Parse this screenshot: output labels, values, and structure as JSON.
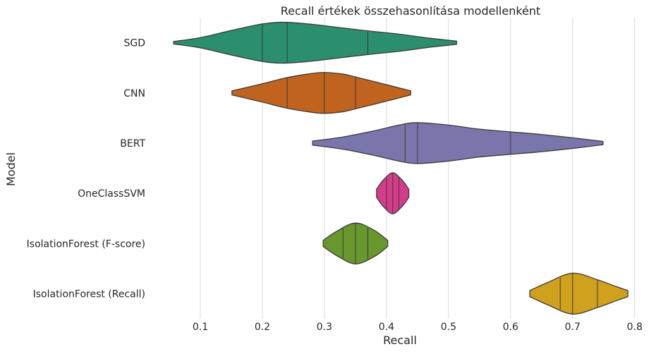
{
  "chart_data": {
    "type": "violin",
    "title": "Recall értékek összehasonlítása modellenként",
    "xlabel": "Recall",
    "ylabel": "Model",
    "xlim": [
      0.025,
      0.823
    ],
    "xticks": [
      0.1,
      0.2,
      0.3,
      0.4,
      0.5,
      0.6,
      0.7,
      0.8
    ],
    "xtick_labels": [
      "0.1",
      "0.2",
      "0.3",
      "0.4",
      "0.5",
      "0.6",
      "0.7",
      "0.8"
    ],
    "grid": "vertical",
    "series": [
      {
        "name": "SGD",
        "color": "#2a8e6f",
        "min": 0.057,
        "max": 0.513,
        "quartiles": [
          0.2,
          0.24,
          0.37
        ],
        "density": [
          [
            0.057,
            0.06
          ],
          [
            0.1,
            0.25
          ],
          [
            0.15,
            0.6
          ],
          [
            0.2,
            0.92
          ],
          [
            0.235,
            1.0
          ],
          [
            0.28,
            0.9
          ],
          [
            0.33,
            0.72
          ],
          [
            0.37,
            0.58
          ],
          [
            0.42,
            0.42
          ],
          [
            0.47,
            0.22
          ],
          [
            0.513,
            0.08
          ]
        ]
      },
      {
        "name": "CNN",
        "color": "#c0631e",
        "min": 0.151,
        "max": 0.439,
        "quartiles": [
          0.24,
          0.3,
          0.35
        ],
        "density": [
          [
            0.151,
            0.1
          ],
          [
            0.2,
            0.45
          ],
          [
            0.24,
            0.75
          ],
          [
            0.28,
            0.95
          ],
          [
            0.3,
            1.0
          ],
          [
            0.33,
            0.92
          ],
          [
            0.35,
            0.78
          ],
          [
            0.39,
            0.48
          ],
          [
            0.439,
            0.1
          ]
        ]
      },
      {
        "name": "BERT",
        "color": "#7a76ab",
        "min": 0.281,
        "max": 0.749,
        "quartiles": [
          0.43,
          0.45,
          0.6
        ],
        "density": [
          [
            0.281,
            0.1
          ],
          [
            0.33,
            0.3
          ],
          [
            0.38,
            0.6
          ],
          [
            0.42,
            0.88
          ],
          [
            0.45,
            1.0
          ],
          [
            0.5,
            0.88
          ],
          [
            0.55,
            0.68
          ],
          [
            0.6,
            0.55
          ],
          [
            0.65,
            0.42
          ],
          [
            0.7,
            0.26
          ],
          [
            0.749,
            0.08
          ]
        ]
      },
      {
        "name": "OneClassSVM",
        "color": "#d33c8a",
        "min": 0.384,
        "max": 0.436,
        "quartiles": [
          0.4,
          0.41,
          0.42
        ],
        "density": [
          [
            0.384,
            0.2
          ],
          [
            0.395,
            0.65
          ],
          [
            0.41,
            1.0
          ],
          [
            0.425,
            0.65
          ],
          [
            0.436,
            0.2
          ]
        ]
      },
      {
        "name": "IsolationForest (F-score)",
        "color": "#68972d",
        "min": 0.298,
        "max": 0.402,
        "quartiles": [
          0.33,
          0.35,
          0.37
        ],
        "density": [
          [
            0.298,
            0.15
          ],
          [
            0.32,
            0.6
          ],
          [
            0.35,
            1.0
          ],
          [
            0.38,
            0.65
          ],
          [
            0.402,
            0.15
          ]
        ]
      },
      {
        "name": "IsolationForest (Recall)",
        "color": "#cfa11c",
        "min": 0.631,
        "max": 0.789,
        "quartiles": [
          0.68,
          0.7,
          0.74
        ],
        "density": [
          [
            0.631,
            0.15
          ],
          [
            0.66,
            0.55
          ],
          [
            0.7,
            1.0
          ],
          [
            0.74,
            0.68
          ],
          [
            0.77,
            0.35
          ],
          [
            0.789,
            0.15
          ]
        ]
      }
    ]
  }
}
